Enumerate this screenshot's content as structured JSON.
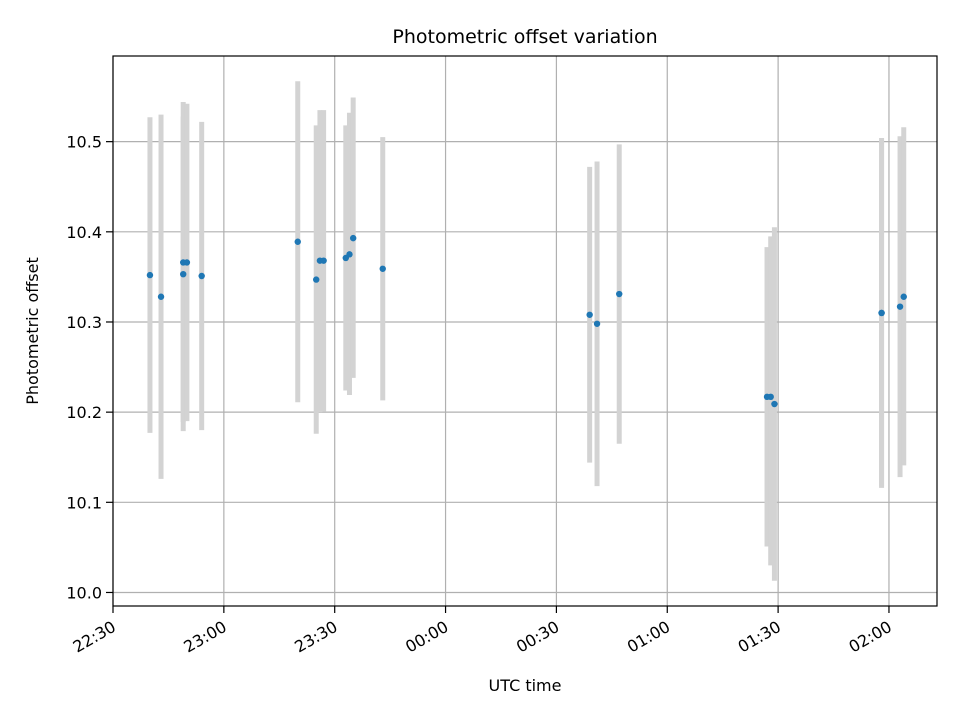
{
  "chart_data": {
    "type": "scatter",
    "title": "Photometric offset variation",
    "xlabel": "UTC time",
    "ylabel": "Photometric offset",
    "xlim": [
      "22:30",
      "02:13"
    ],
    "ylim": [
      9.985,
      10.595
    ],
    "grid": true,
    "point_color": "#1f77b4",
    "errorbar_color": "#d3d3d3",
    "x_ticks": [
      "22:30",
      "23:00",
      "23:30",
      "00:00",
      "00:30",
      "01:00",
      "01:30",
      "02:00"
    ],
    "y_ticks": [
      "10.0",
      "10.1",
      "10.2",
      "10.3",
      "10.4",
      "10.5"
    ],
    "points": [
      {
        "t": "22:40",
        "y": 10.352,
        "lo": 10.177,
        "hi": 10.527
      },
      {
        "t": "22:43",
        "y": 10.328,
        "lo": 10.126,
        "hi": 10.53
      },
      {
        "t": "22:49",
        "y": 10.353,
        "lo": 10.179,
        "hi": 10.528
      },
      {
        "t": "22:49",
        "y": 10.366,
        "lo": 10.189,
        "hi": 10.544
      },
      {
        "t": "22:50",
        "y": 10.366,
        "lo": 10.19,
        "hi": 10.542
      },
      {
        "t": "22:54",
        "y": 10.351,
        "lo": 10.18,
        "hi": 10.522
      },
      {
        "t": "23:20",
        "y": 10.389,
        "lo": 10.211,
        "hi": 10.567
      },
      {
        "t": "23:25",
        "y": 10.347,
        "lo": 10.176,
        "hi": 10.518
      },
      {
        "t": "23:26",
        "y": 10.368,
        "lo": 10.2,
        "hi": 10.535
      },
      {
        "t": "23:27",
        "y": 10.368,
        "lo": 10.201,
        "hi": 10.535
      },
      {
        "t": "23:33",
        "y": 10.371,
        "lo": 10.224,
        "hi": 10.518
      },
      {
        "t": "23:34",
        "y": 10.375,
        "lo": 10.219,
        "hi": 10.532
      },
      {
        "t": "23:35",
        "y": 10.393,
        "lo": 10.238,
        "hi": 10.549
      },
      {
        "t": "23:43",
        "y": 10.359,
        "lo": 10.213,
        "hi": 10.505
      },
      {
        "t": "00:39",
        "y": 10.308,
        "lo": 10.144,
        "hi": 10.472
      },
      {
        "t": "00:41",
        "y": 10.298,
        "lo": 10.118,
        "hi": 10.478
      },
      {
        "t": "00:47",
        "y": 10.331,
        "lo": 10.165,
        "hi": 10.497
      },
      {
        "t": "01:27",
        "y": 10.217,
        "lo": 10.051,
        "hi": 10.383
      },
      {
        "t": "01:28",
        "y": 10.217,
        "lo": 10.03,
        "hi": 10.395
      },
      {
        "t": "01:29",
        "y": 10.209,
        "lo": 10.013,
        "hi": 10.405
      },
      {
        "t": "01:58",
        "y": 10.31,
        "lo": 10.116,
        "hi": 10.504
      },
      {
        "t": "01:58",
        "y": 10.31,
        "lo": 10.118,
        "hi": 10.502
      },
      {
        "t": "02:03",
        "y": 10.317,
        "lo": 10.128,
        "hi": 10.506
      },
      {
        "t": "02:04",
        "y": 10.328,
        "lo": 10.141,
        "hi": 10.516
      }
    ]
  }
}
